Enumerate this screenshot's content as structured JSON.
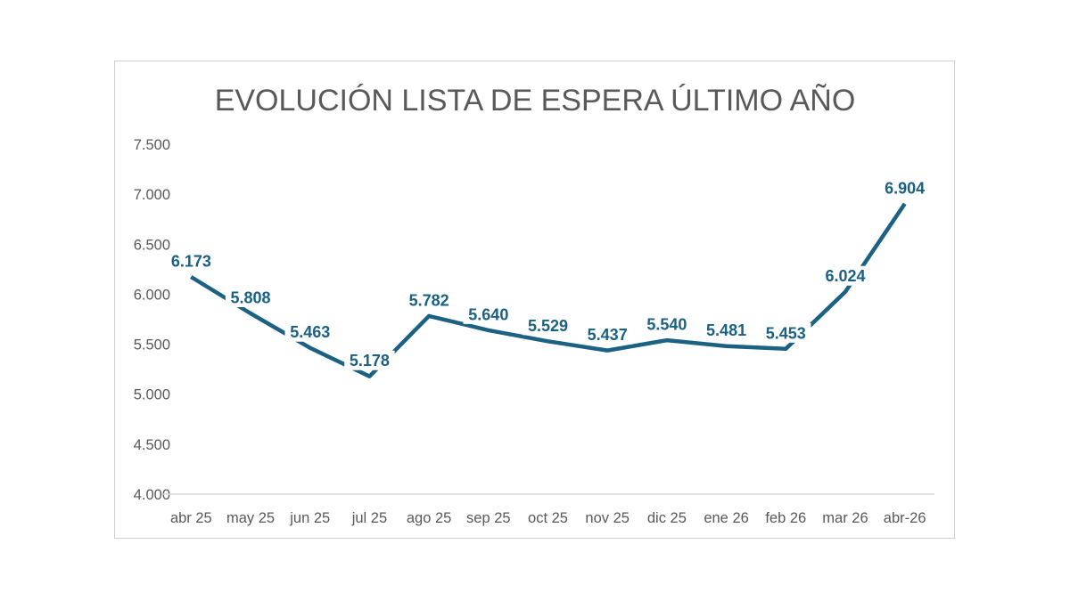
{
  "chart_data": {
    "type": "line",
    "title": "EVOLUCIÓN LISTA DE ESPERA ÚLTIMO AÑO",
    "categories": [
      "abr 25",
      "may 25",
      "jun 25",
      "jul 25",
      "ago 25",
      "sep 25",
      "oct 25",
      "nov 25",
      "dic 25",
      "ene 26",
      "feb 26",
      "mar 26",
      "abr-26"
    ],
    "series": [
      {
        "values": [
          6173,
          5808,
          5463,
          5178,
          5782,
          5640,
          5529,
          5437,
          5540,
          5481,
          5453,
          6024,
          6904
        ],
        "labels": [
          "6.173",
          "5.808",
          "5.463",
          "5.178",
          "5.782",
          "5.640",
          "5.529",
          "5.437",
          "5.540",
          "5.481",
          "5.453",
          "6.024",
          "6.904"
        ],
        "color": "#1b6184"
      }
    ],
    "ylim": [
      4000,
      7500
    ],
    "yticks": [
      4000,
      4500,
      5000,
      5500,
      6000,
      6500,
      7000,
      7500
    ],
    "ytick_labels": [
      "4.000",
      "4.500",
      "5.000",
      "5.500",
      "6.000",
      "6.500",
      "7.000",
      "7.500"
    ],
    "grid": false,
    "legend": "none",
    "xlabel": "",
    "ylabel": ""
  }
}
